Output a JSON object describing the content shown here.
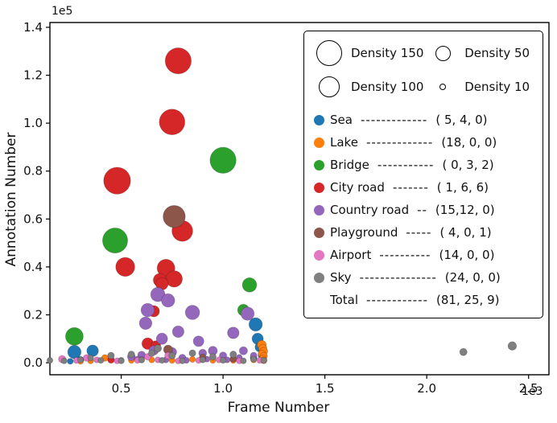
{
  "chart_data": {
    "type": "scatter",
    "title": "",
    "xlabel": "Frame Number",
    "ylabel": "Annotation Number",
    "x_offset_text": "1e3",
    "y_offset_text": "1e5",
    "xlim": [
      0.15,
      2.6
    ],
    "ylim": [
      -0.05,
      1.42
    ],
    "xticks": [
      0.5,
      1.0,
      1.5,
      2.0,
      2.5
    ],
    "yticks": [
      0.0,
      0.2,
      0.4,
      0.6,
      0.8,
      1.0,
      1.2,
      1.4
    ],
    "grid": false,
    "legend_position": "upper right",
    "size_encoding": "bubble area proportional to Density",
    "series": [
      {
        "name": "Sea",
        "color": "#1f77b4",
        "tuple": "( 5, 4, 0)",
        "points": [
          [
            0.27,
            0.045,
            40
          ],
          [
            0.36,
            0.05,
            30
          ],
          [
            1.16,
            0.16,
            40
          ],
          [
            1.17,
            0.1,
            28
          ],
          [
            1.18,
            0.065,
            20
          ],
          [
            0.3,
            0.012,
            10
          ],
          [
            1.19,
            0.032,
            12
          ],
          [
            0.25,
            0.006,
            8
          ],
          [
            1.15,
            0.02,
            10
          ]
        ]
      },
      {
        "name": "Lake",
        "color": "#ff7f0e",
        "tuple": "(18, 0, 0)",
        "points": [
          [
            1.19,
            0.075,
            18
          ],
          [
            1.195,
            0.06,
            15
          ],
          [
            1.2,
            0.048,
            14
          ],
          [
            1.19,
            0.038,
            12
          ],
          [
            1.2,
            0.028,
            12
          ],
          [
            1.195,
            0.018,
            10
          ],
          [
            1.2,
            0.01,
            10
          ],
          [
            0.42,
            0.02,
            10
          ],
          [
            0.45,
            0.012,
            8
          ],
          [
            0.55,
            0.01,
            8
          ],
          [
            0.65,
            0.012,
            8
          ],
          [
            0.75,
            0.01,
            8
          ],
          [
            0.85,
            0.014,
            8
          ],
          [
            0.95,
            0.01,
            8
          ],
          [
            0.35,
            0.008,
            8
          ],
          [
            0.3,
            0.006,
            8
          ],
          [
            1.05,
            0.01,
            8
          ],
          [
            1.15,
            0.012,
            8
          ]
        ]
      },
      {
        "name": "Bridge",
        "color": "#2ca02c",
        "tuple": "( 0, 3, 2)",
        "points": [
          [
            1.0,
            0.845,
            150
          ],
          [
            0.47,
            0.51,
            140
          ],
          [
            0.27,
            0.11,
            70
          ],
          [
            1.13,
            0.325,
            45
          ],
          [
            1.1,
            0.22,
            30
          ]
        ]
      },
      {
        "name": "City road",
        "color": "#d62728",
        "tuple": "( 1, 6, 6)",
        "points": [
          [
            0.78,
            1.26,
            150
          ],
          [
            0.75,
            1.005,
            145
          ],
          [
            0.48,
            0.76,
            160
          ],
          [
            0.8,
            0.55,
            95
          ],
          [
            0.52,
            0.4,
            80
          ],
          [
            0.72,
            0.395,
            70
          ],
          [
            0.76,
            0.35,
            60
          ],
          [
            0.69,
            0.345,
            40
          ],
          [
            0.7,
            0.33,
            35
          ],
          [
            0.66,
            0.215,
            28
          ],
          [
            0.63,
            0.08,
            30
          ],
          [
            0.67,
            0.072,
            20
          ],
          [
            0.45,
            0.012,
            10
          ]
        ]
      },
      {
        "name": "Country road",
        "color": "#9467bd",
        "tuple": "(15,12, 0)",
        "points": [
          [
            0.68,
            0.285,
            45
          ],
          [
            0.73,
            0.26,
            40
          ],
          [
            0.63,
            0.22,
            40
          ],
          [
            0.85,
            0.21,
            45
          ],
          [
            1.12,
            0.205,
            40
          ],
          [
            0.62,
            0.165,
            35
          ],
          [
            0.78,
            0.13,
            30
          ],
          [
            1.05,
            0.125,
            30
          ],
          [
            0.7,
            0.1,
            28
          ],
          [
            0.88,
            0.09,
            25
          ],
          [
            0.66,
            0.052,
            20
          ],
          [
            0.75,
            0.045,
            18
          ],
          [
            0.95,
            0.05,
            18
          ],
          [
            1.1,
            0.05,
            15
          ],
          [
            0.55,
            0.025,
            14
          ],
          [
            0.6,
            0.032,
            14
          ],
          [
            0.8,
            0.02,
            12
          ],
          [
            0.9,
            0.04,
            14
          ],
          [
            1.0,
            0.03,
            12
          ],
          [
            1.15,
            0.03,
            10
          ],
          [
            0.5,
            0.01,
            8
          ],
          [
            0.58,
            0.015,
            8
          ],
          [
            0.72,
            0.012,
            8
          ],
          [
            0.82,
            0.01,
            8
          ],
          [
            0.92,
            0.015,
            8
          ],
          [
            1.02,
            0.012,
            8
          ],
          [
            1.08,
            0.022,
            8
          ]
        ]
      },
      {
        "name": "Playground",
        "color": "#8c564b",
        "tuple": "( 4, 0, 1)",
        "points": [
          [
            0.76,
            0.61,
            110
          ],
          [
            0.73,
            0.055,
            18
          ],
          [
            0.9,
            0.022,
            10
          ],
          [
            1.05,
            0.016,
            10
          ],
          [
            0.6,
            0.012,
            8
          ]
        ]
      },
      {
        "name": "Airport",
        "color": "#e377c2",
        "tuple": "(14, 0, 0)",
        "points": [
          [
            0.21,
            0.015,
            12
          ],
          [
            0.28,
            0.01,
            8
          ],
          [
            0.38,
            0.012,
            8
          ],
          [
            0.48,
            0.008,
            8
          ],
          [
            0.58,
            0.01,
            8
          ],
          [
            0.68,
            0.012,
            8
          ],
          [
            0.78,
            0.008,
            8
          ],
          [
            0.88,
            0.01,
            8
          ],
          [
            0.98,
            0.012,
            8
          ],
          [
            1.08,
            0.008,
            8
          ],
          [
            1.18,
            0.01,
            8
          ],
          [
            0.33,
            0.02,
            10
          ],
          [
            0.63,
            0.025,
            10
          ],
          [
            0.73,
            0.03,
            10
          ]
        ]
      },
      {
        "name": "Sky",
        "color": "#7f7f7f",
        "tuple": "(24, 0, 0)",
        "points": [
          [
            2.18,
            0.045,
            12
          ],
          [
            2.42,
            0.07,
            16
          ],
          [
            0.15,
            0.01,
            8
          ],
          [
            0.22,
            0.008,
            8
          ],
          [
            0.3,
            0.012,
            8
          ],
          [
            0.4,
            0.01,
            8
          ],
          [
            0.5,
            0.008,
            8
          ],
          [
            0.6,
            0.012,
            8
          ],
          [
            0.7,
            0.01,
            8
          ],
          [
            0.8,
            0.008,
            8
          ],
          [
            0.9,
            0.012,
            8
          ],
          [
            1.0,
            0.01,
            8
          ],
          [
            1.1,
            0.008,
            8
          ],
          [
            1.2,
            0.01,
            8
          ],
          [
            0.45,
            0.03,
            10
          ],
          [
            0.55,
            0.035,
            10
          ],
          [
            0.65,
            0.04,
            10
          ],
          [
            0.75,
            0.03,
            10
          ],
          [
            0.95,
            0.025,
            10
          ],
          [
            1.05,
            0.035,
            10
          ],
          [
            0.35,
            0.02,
            8
          ],
          [
            0.85,
            0.04,
            10
          ],
          [
            1.15,
            0.015,
            8
          ],
          [
            0.68,
            0.06,
            12
          ]
        ]
      }
    ]
  },
  "legend": {
    "sizes": [
      {
        "label": "Density 150",
        "d": 150
      },
      {
        "label": "Density 50",
        "d": 50
      },
      {
        "label": "Density 100",
        "d": 100
      },
      {
        "label": "Density 10",
        "d": 10
      }
    ],
    "items": [
      {
        "label": "Sea",
        "dashes": "-------------",
        "tuple": "( 5, 4, 0)"
      },
      {
        "label": "Lake",
        "dashes": "-------------",
        "tuple": "(18, 0, 0)"
      },
      {
        "label": "Bridge",
        "dashes": "-----------",
        "tuple": "( 0, 3, 2)"
      },
      {
        "label": "City road",
        "dashes": "-------",
        "tuple": "( 1, 6, 6)"
      },
      {
        "label": "Country road",
        "dashes": "--",
        "tuple": "(15,12, 0)"
      },
      {
        "label": "Playground",
        "dashes": "-----",
        "tuple": "( 4, 0, 1)"
      },
      {
        "label": "Airport",
        "dashes": "----------",
        "tuple": "(14, 0, 0)"
      },
      {
        "label": "Sky",
        "dashes": "---------------",
        "tuple": "(24, 0, 0)"
      },
      {
        "label": "Total",
        "dashes": "------------",
        "tuple": "(81, 25, 9)"
      }
    ]
  }
}
